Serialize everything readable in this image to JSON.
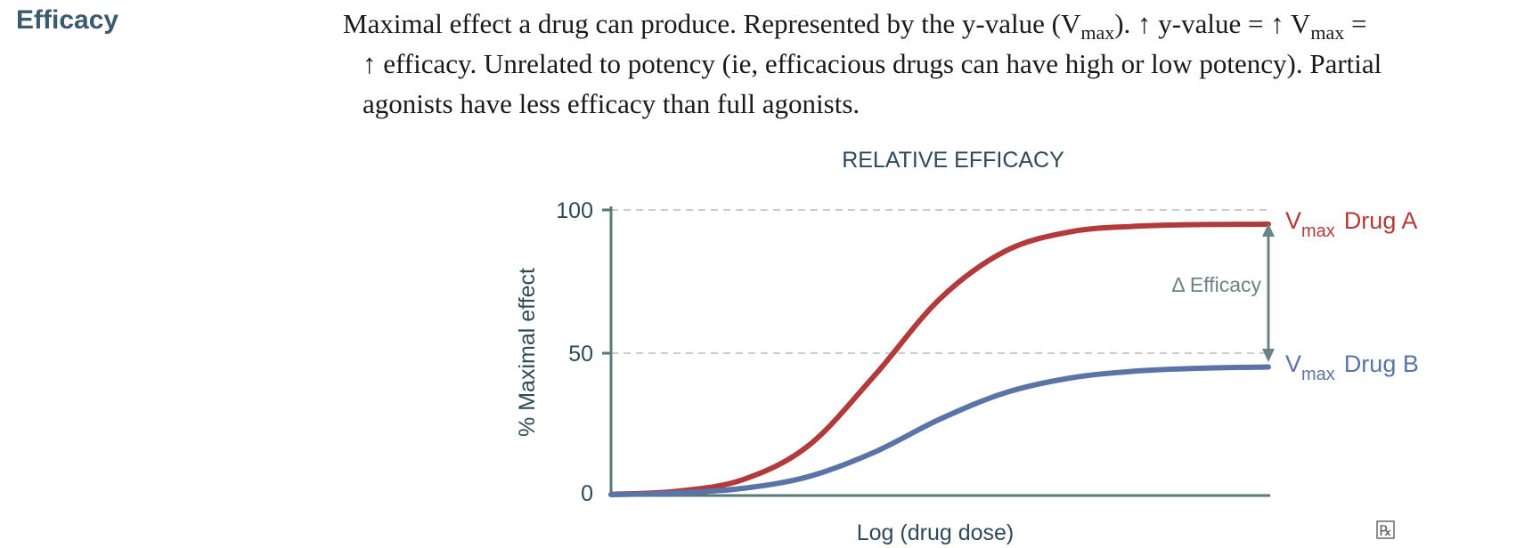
{
  "heading": "Efficacy",
  "description": {
    "line1_a": "Maximal effect a drug can produce. Represented by the y-value (V",
    "line1_sub1": "max",
    "line1_b": "). ↑ y-value = ↑ V",
    "line1_sub2": "max",
    "line1_c": " =",
    "line2": "↑ efficacy. Unrelated to potency (ie, efficacious drugs can have high or low potency). Partial",
    "line3": "agonists have less efficacy than full agonists."
  },
  "chart_data": {
    "type": "line",
    "title": "RELATIVE EFFICACY",
    "xlabel": "Log (drug dose)",
    "ylabel": "% Maximal effect",
    "ylim": [
      0,
      100
    ],
    "yticks": [
      "0",
      "50",
      "100"
    ],
    "grid": "dashed at 50 and 100",
    "series": [
      {
        "name": "Drug A",
        "color": "#b23a3a",
        "vmax": 95,
        "points": [
          [
            0,
            0.4
          ],
          [
            0.1,
            1.5
          ],
          [
            0.2,
            5.5
          ],
          [
            0.3,
            17.4
          ],
          [
            0.4,
            41.8
          ],
          [
            0.5,
            68.8
          ],
          [
            0.6,
            85.6
          ],
          [
            0.7,
            92.4
          ],
          [
            0.8,
            94.3
          ],
          [
            0.9,
            94.9
          ],
          [
            1,
            95
          ]
        ]
      },
      {
        "name": "Drug B",
        "color": "#5b74a8",
        "vmax": 45,
        "points": [
          [
            0,
            0.3
          ],
          [
            0.1,
            0.9
          ],
          [
            0.2,
            2.5
          ],
          [
            0.3,
            6.6
          ],
          [
            0.4,
            15.1
          ],
          [
            0.5,
            26.7
          ],
          [
            0.6,
            36.0
          ],
          [
            0.7,
            41.2
          ],
          [
            0.8,
            43.6
          ],
          [
            0.9,
            44.6
          ],
          [
            1,
            45
          ]
        ]
      }
    ],
    "annotations": {
      "delta": "Δ Efficacy",
      "vmax_label": "V",
      "vmax_sub": "max",
      "drug_a": "Drug A",
      "drug_b": "Drug B"
    },
    "colors": {
      "axis": "#5a7a7a",
      "grid": "#bbbbbb",
      "arrow": "#6a8484",
      "text": "#2e4a5a"
    }
  },
  "logo": "℞"
}
